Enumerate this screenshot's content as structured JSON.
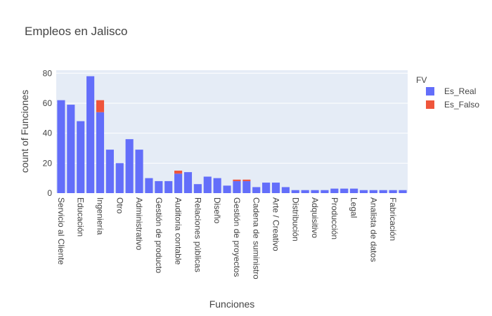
{
  "chart_data": {
    "type": "bar",
    "barmode": "stack",
    "title": "Empleos en Jalisco",
    "xlabel": "Funciones",
    "ylabel": "count of Funciones",
    "ylim": [
      0,
      82
    ],
    "yticks": [
      0,
      20,
      40,
      60,
      80
    ],
    "grid": true,
    "legend": {
      "title": "FV",
      "placement": "top-right",
      "entries": [
        "Es_Real",
        "Es_Falso"
      ]
    },
    "shown_tick_labels": [
      "Servicio al Cliente",
      "Educación",
      "Ingeniería",
      "Otro",
      "Administrativo",
      "Gestión de producto",
      "Auditoria contable",
      "Relaciones públicas",
      "Diseño",
      "Gestión de proyectos",
      "Cadena de suministro",
      "Arte / Creativo",
      "Distribución",
      "Adquisitivo",
      "Producción",
      "Legal",
      "Analista de datos",
      "Fabricación"
    ],
    "categories": [
      "Servicio al Cliente",
      "",
      "Educación",
      "",
      "Ingeniería",
      "",
      "Otro",
      "",
      "Administrativo",
      "",
      "Gestión de producto",
      "",
      "Auditoria contable",
      "",
      "Relaciones públicas",
      "",
      "Diseño",
      "",
      "Gestión de proyectos",
      "",
      "Cadena de suministro",
      "",
      "Arte / Creativo",
      "",
      "Distribución",
      "",
      "Adquisitivo",
      "",
      "Producción",
      "",
      "Legal",
      "",
      "Analista de datos",
      "",
      "Fabricación",
      ""
    ],
    "series": [
      {
        "name": "Es_Real",
        "color": "#636efa",
        "values": [
          62,
          59,
          48,
          78,
          54,
          29,
          20,
          36,
          29,
          10,
          8,
          8,
          13,
          14,
          6,
          11,
          10,
          5,
          8,
          8,
          4,
          7,
          7,
          4,
          2,
          2,
          2,
          2,
          3,
          3,
          3,
          2,
          2,
          2,
          2,
          2
        ]
      },
      {
        "name": "Es_Falso",
        "color": "#ef553b",
        "values": [
          0,
          0,
          0,
          0,
          8,
          0,
          0,
          0,
          0,
          0,
          0,
          0,
          2,
          0,
          0,
          0,
          0,
          0,
          1,
          1,
          0,
          0,
          0,
          0,
          0,
          0,
          0,
          0,
          0,
          0,
          0,
          0,
          0,
          0,
          0,
          0
        ]
      }
    ]
  }
}
